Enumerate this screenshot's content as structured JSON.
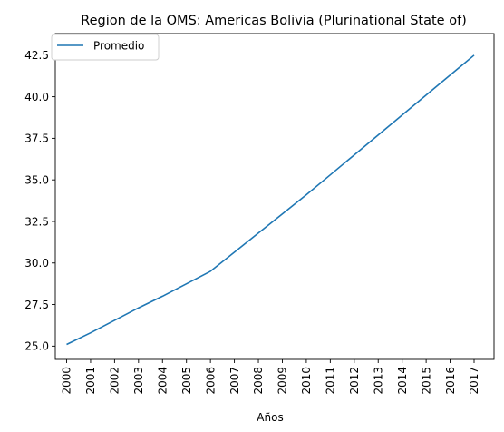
{
  "chart_data": {
    "type": "line",
    "title": "Region de la OMS: Americas   Bolivia (Plurinational State of)",
    "xlabel": "Años",
    "ylabel": "",
    "x": [
      "2000",
      "2001",
      "2002",
      "2003",
      "2004",
      "2005",
      "2006",
      "2007",
      "2008",
      "2009",
      "2010",
      "2011",
      "2012",
      "2013",
      "2014",
      "2015",
      "2016",
      "2017"
    ],
    "series": [
      {
        "name": "Promedio",
        "color": "#1f77b4",
        "values": [
          25.1,
          25.8,
          26.55,
          27.3,
          28.0,
          28.75,
          29.5,
          30.65,
          31.8,
          32.95,
          34.1,
          35.3,
          36.5,
          37.7,
          38.9,
          40.1,
          41.3,
          42.5
        ]
      }
    ],
    "ylim": [
      24.2,
      43.8
    ],
    "yticks": [
      25.0,
      27.5,
      30.0,
      32.5,
      35.0,
      37.5,
      40.0,
      42.5
    ],
    "grid": false,
    "legend_position": "top-left"
  }
}
